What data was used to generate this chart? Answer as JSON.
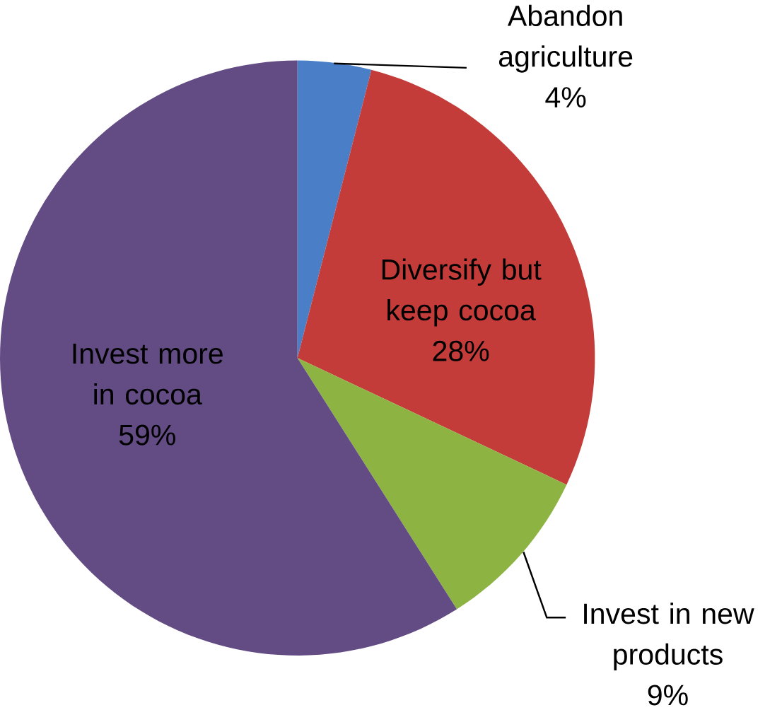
{
  "chart_data": {
    "type": "pie",
    "categories": [
      "Abandon agriculture",
      "Diversify but keep cocoa",
      "Invest in new products",
      "Invest more in cocoa"
    ],
    "values": [
      4,
      28,
      9,
      59
    ],
    "value_labels": [
      "4%",
      "28%",
      "9%",
      "59%"
    ],
    "colors": [
      "#4a7fc8",
      "#c43c39",
      "#8db443",
      "#634b84"
    ]
  }
}
